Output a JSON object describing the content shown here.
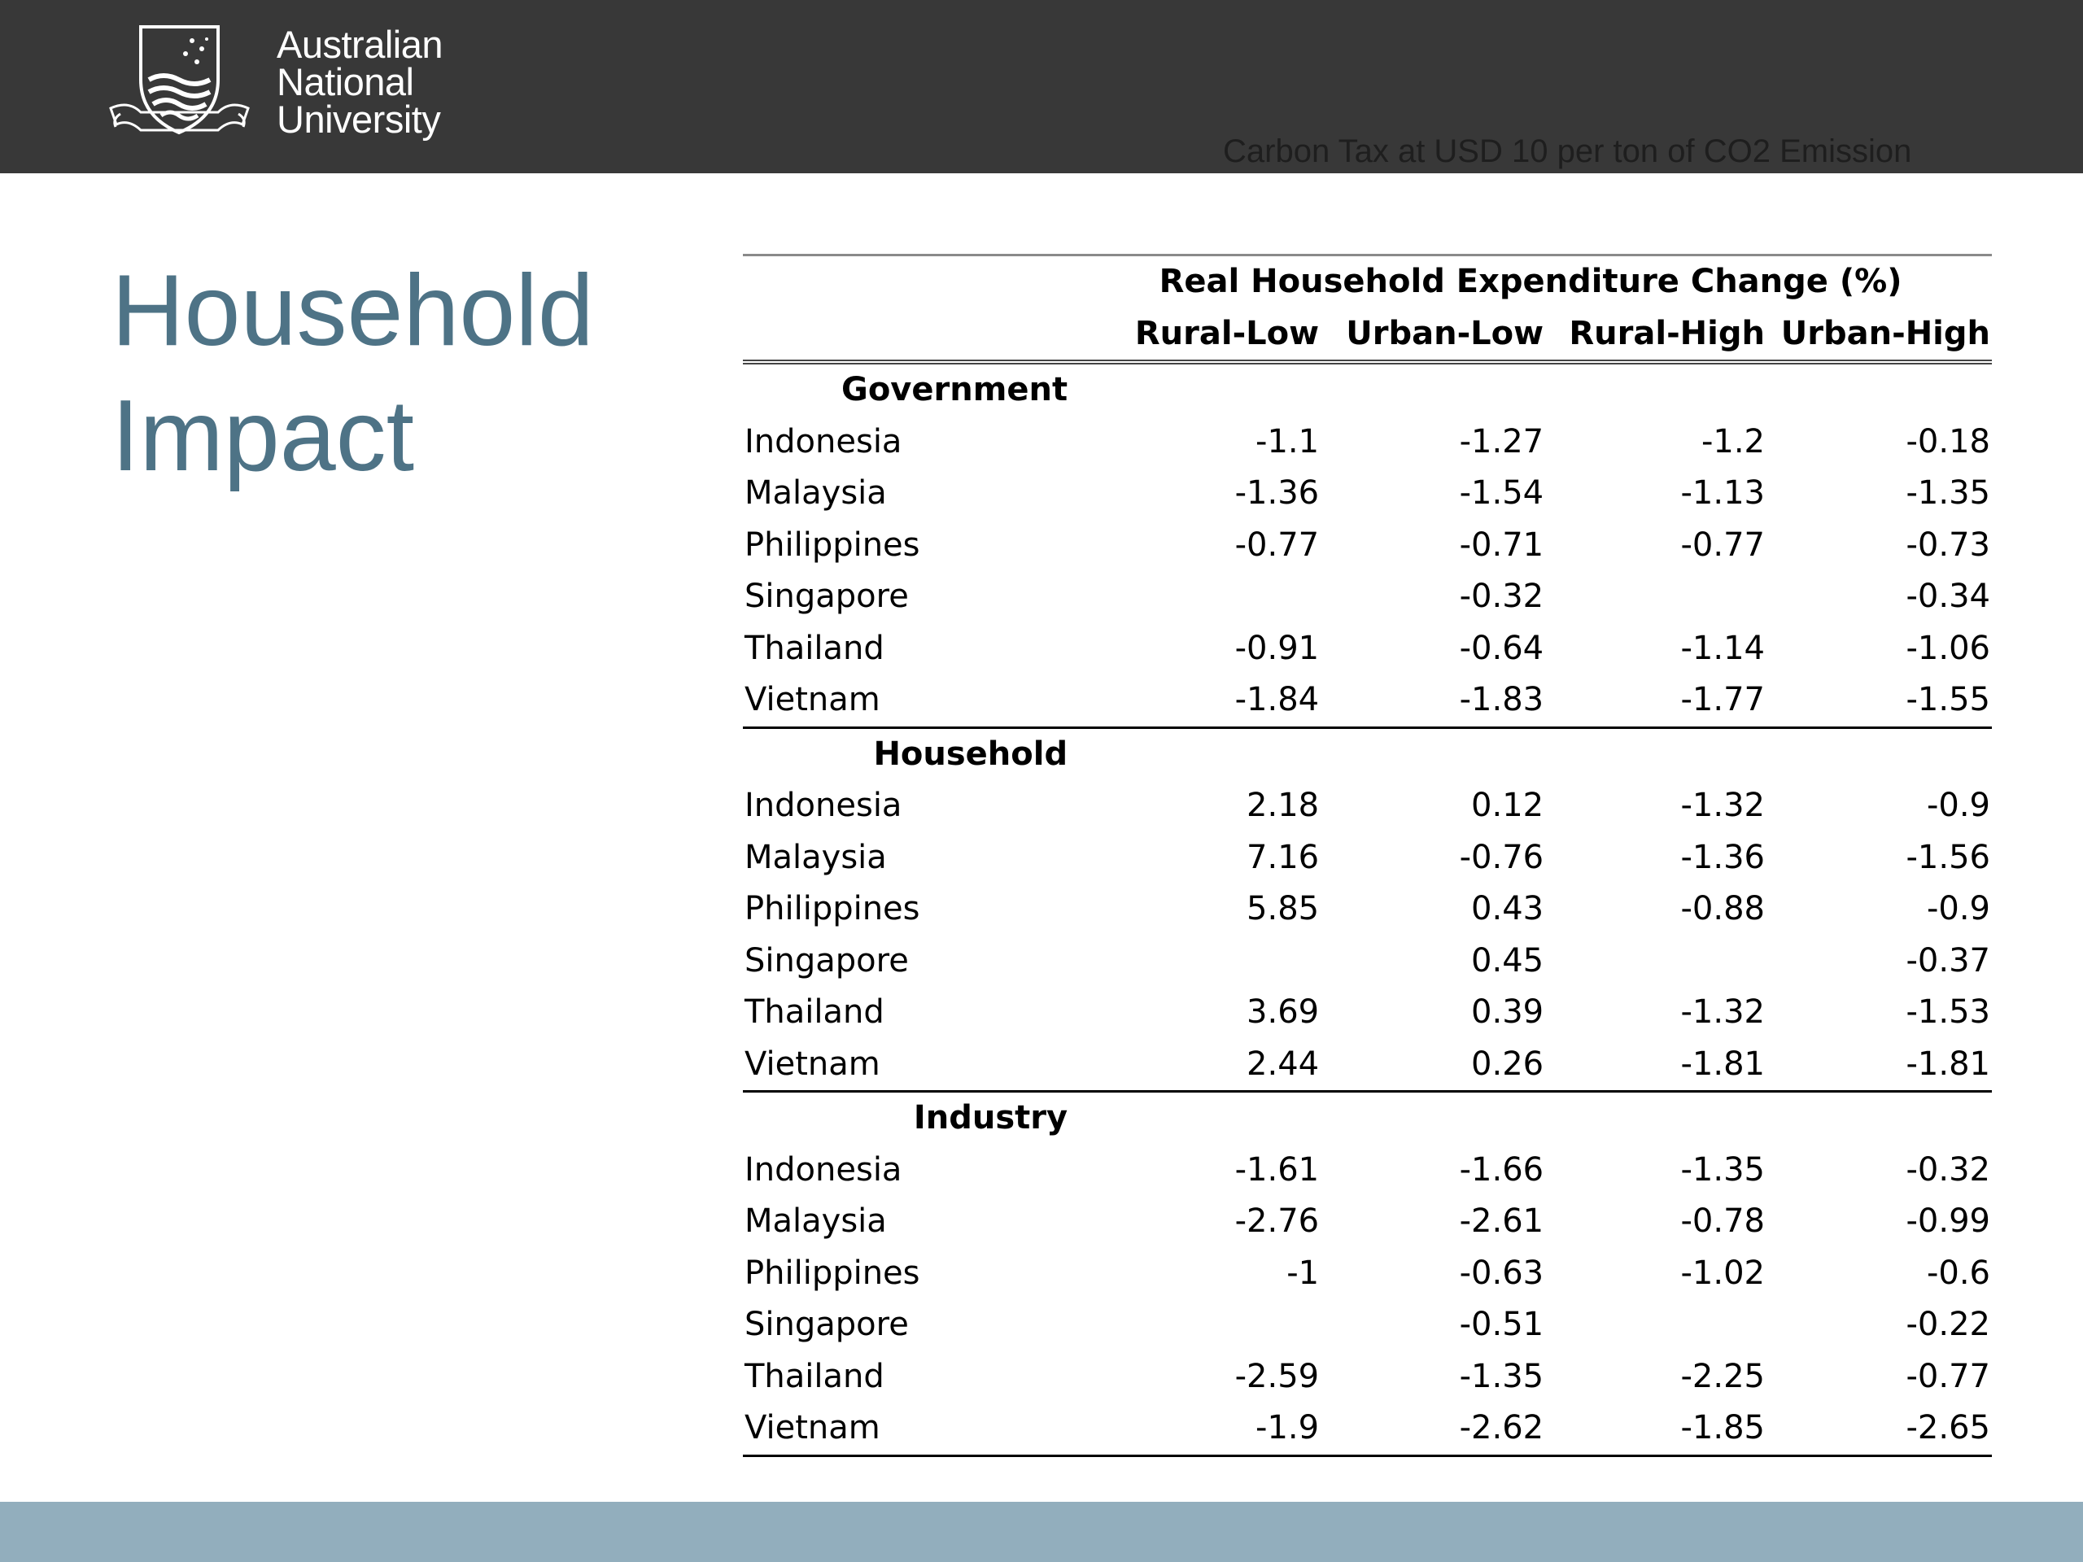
{
  "header": {
    "logo_lines": [
      "Australian",
      "National",
      "University"
    ],
    "subtitle": "Carbon Tax at USD 10 per ton of CO2 Emission"
  },
  "page": {
    "title_lines": [
      "Household",
      "Impact"
    ]
  },
  "colors": {
    "header_bg": "#383838",
    "title": "#4e7386",
    "footer_bg": "#92aebd"
  },
  "table": {
    "caption": "Real Household Expenditure Change (%)",
    "columns": [
      "Rural-Low",
      "Urban-Low",
      "Rural-High",
      "Urban-High"
    ],
    "groups": [
      {
        "label": "Government",
        "rows": [
          {
            "country": "Indonesia",
            "values": [
              "-1.1",
              "-1.27",
              "-1.2",
              "-0.18"
            ]
          },
          {
            "country": "Malaysia",
            "values": [
              "-1.36",
              "-1.54",
              "-1.13",
              "-1.35"
            ]
          },
          {
            "country": "Philippines",
            "values": [
              "-0.77",
              "-0.71",
              "-0.77",
              "-0.73"
            ]
          },
          {
            "country": "Singapore",
            "values": [
              "",
              "-0.32",
              "",
              "-0.34"
            ]
          },
          {
            "country": "Thailand",
            "values": [
              "-0.91",
              "-0.64",
              "-1.14",
              "-1.06"
            ]
          },
          {
            "country": "Vietnam",
            "values": [
              "-1.84",
              "-1.83",
              "-1.77",
              "-1.55"
            ]
          }
        ]
      },
      {
        "label": "Household",
        "rows": [
          {
            "country": "Indonesia",
            "values": [
              "2.18",
              "0.12",
              "-1.32",
              "-0.9"
            ]
          },
          {
            "country": "Malaysia",
            "values": [
              "7.16",
              "-0.76",
              "-1.36",
              "-1.56"
            ]
          },
          {
            "country": "Philippines",
            "values": [
              "5.85",
              "0.43",
              "-0.88",
              "-0.9"
            ]
          },
          {
            "country": "Singapore",
            "values": [
              "",
              "0.45",
              "",
              "-0.37"
            ]
          },
          {
            "country": "Thailand",
            "values": [
              "3.69",
              "0.39",
              "-1.32",
              "-1.53"
            ]
          },
          {
            "country": "Vietnam",
            "values": [
              "2.44",
              "0.26",
              "-1.81",
              "-1.81"
            ]
          }
        ]
      },
      {
        "label": "Industry",
        "rows": [
          {
            "country": "Indonesia",
            "values": [
              "-1.61",
              "-1.66",
              "-1.35",
              "-0.32"
            ]
          },
          {
            "country": "Malaysia",
            "values": [
              "-2.76",
              "-2.61",
              "-0.78",
              "-0.99"
            ]
          },
          {
            "country": "Philippines",
            "values": [
              "-1",
              "-0.63",
              "-1.02",
              "-0.6"
            ]
          },
          {
            "country": "Singapore",
            "values": [
              "",
              "-0.51",
              "",
              "-0.22"
            ]
          },
          {
            "country": "Thailand",
            "values": [
              "-2.59",
              "-1.35",
              "-2.25",
              "-0.77"
            ]
          },
          {
            "country": "Vietnam",
            "values": [
              "-1.9",
              "-2.62",
              "-1.85",
              "-2.65"
            ]
          }
        ]
      }
    ]
  }
}
